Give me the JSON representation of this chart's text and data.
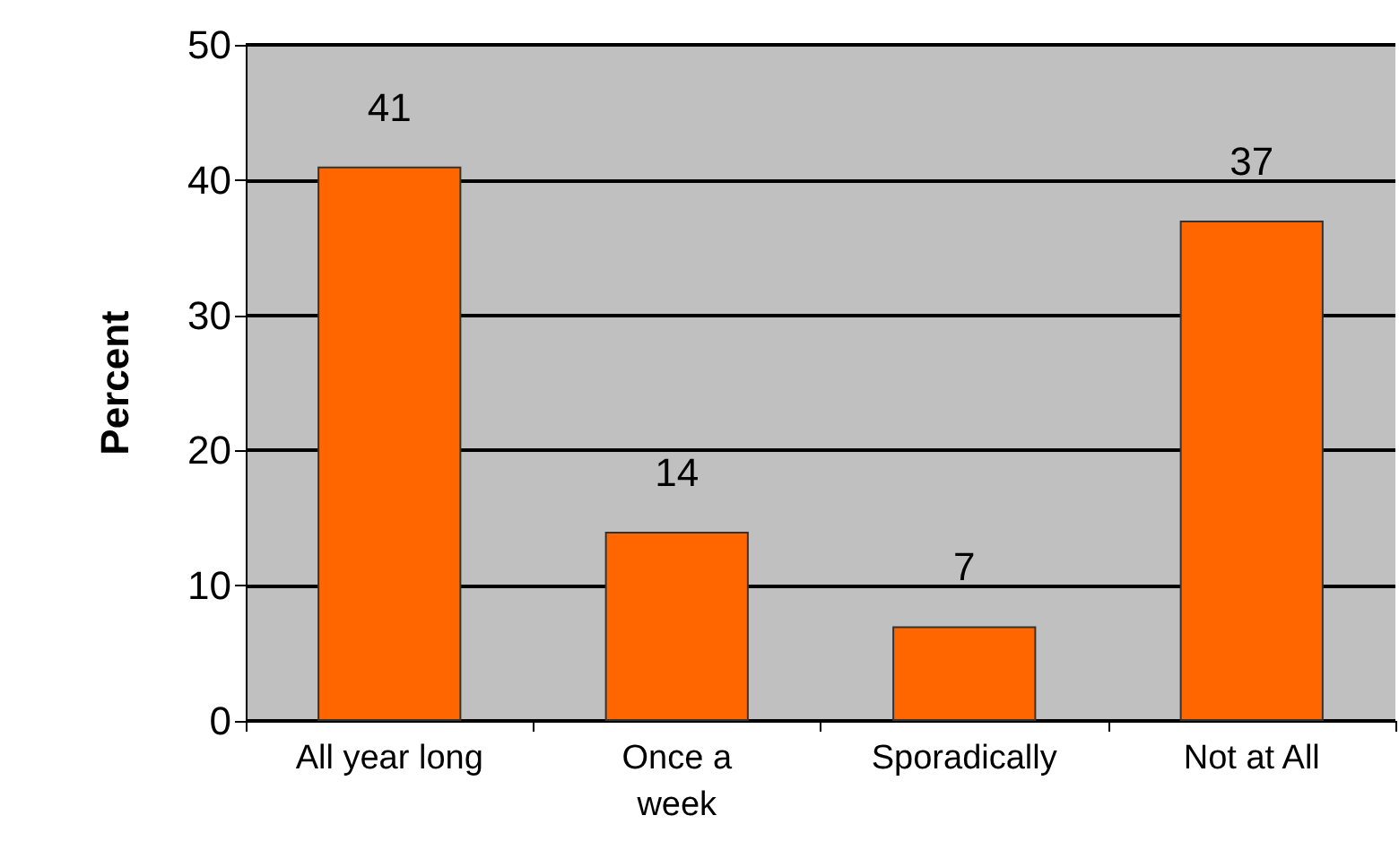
{
  "chart_data": {
    "type": "bar",
    "ylabel": "Percent",
    "categories": [
      "All year long",
      "Once a\nweek",
      "Sporadically",
      "Not at All"
    ],
    "values": [
      41,
      14,
      7,
      37
    ],
    "color": "#ff6600",
    "ylim": [
      0,
      50
    ],
    "yticks": [
      0,
      10,
      20,
      30,
      40,
      50
    ],
    "grid": "y",
    "data_labels": true
  }
}
